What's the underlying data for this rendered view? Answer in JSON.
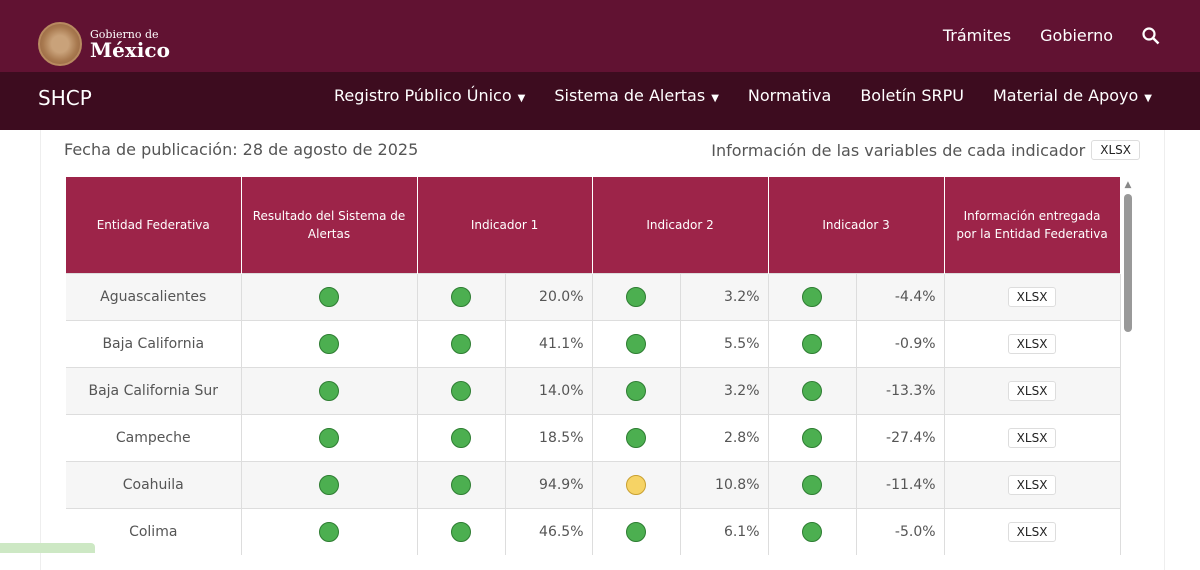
{
  "header": {
    "logo_line1": "Gobierno de",
    "logo_line2": "México",
    "links": [
      "Trámites",
      "Gobierno"
    ]
  },
  "nav": {
    "brand": "SHCP",
    "items": [
      {
        "label": "Registro Público Único",
        "dropdown": true
      },
      {
        "label": "Sistema de Alertas",
        "dropdown": true
      },
      {
        "label": "Normativa",
        "dropdown": false
      },
      {
        "label": "Boletín SRPU",
        "dropdown": false
      },
      {
        "label": "Material de Apoyo",
        "dropdown": true
      }
    ]
  },
  "page": {
    "date": "Fecha de publicación: 28 de agosto de 2025",
    "info": "Información de las variables de cada indicador",
    "info_button": "XLSX"
  },
  "colors": {
    "green": "#4caf50",
    "yellow": "#f6d365",
    "header": "#9d2449"
  },
  "table": {
    "headers": [
      "Entidad Federativa",
      "Resultado del Sistema de Alertas",
      "Indicador 1",
      "Indicador 2",
      "Indicador 3",
      "Información entregada por la Entidad Federativa"
    ],
    "rows": [
      {
        "entity": "Aguascalientes",
        "result": "green",
        "i1": "green",
        "v1": "20.0%",
        "i2": "green",
        "v2": "3.2%",
        "i3": "green",
        "v3": "-4.4%",
        "file": "XLSX"
      },
      {
        "entity": "Baja California",
        "result": "green",
        "i1": "green",
        "v1": "41.1%",
        "i2": "green",
        "v2": "5.5%",
        "i3": "green",
        "v3": "-0.9%",
        "file": "XLSX"
      },
      {
        "entity": "Baja California Sur",
        "result": "green",
        "i1": "green",
        "v1": "14.0%",
        "i2": "green",
        "v2": "3.2%",
        "i3": "green",
        "v3": "-13.3%",
        "file": "XLSX"
      },
      {
        "entity": "Campeche",
        "result": "green",
        "i1": "green",
        "v1": "18.5%",
        "i2": "green",
        "v2": "2.8%",
        "i3": "green",
        "v3": "-27.4%",
        "file": "XLSX"
      },
      {
        "entity": "Coahuila",
        "result": "green",
        "i1": "green",
        "v1": "94.9%",
        "i2": "yellow",
        "v2": "10.8%",
        "i3": "green",
        "v3": "-11.4%",
        "file": "XLSX"
      },
      {
        "entity": "Colima",
        "result": "green",
        "i1": "green",
        "v1": "46.5%",
        "i2": "green",
        "v2": "6.1%",
        "i3": "green",
        "v3": "-5.0%",
        "file": "XLSX"
      }
    ]
  }
}
